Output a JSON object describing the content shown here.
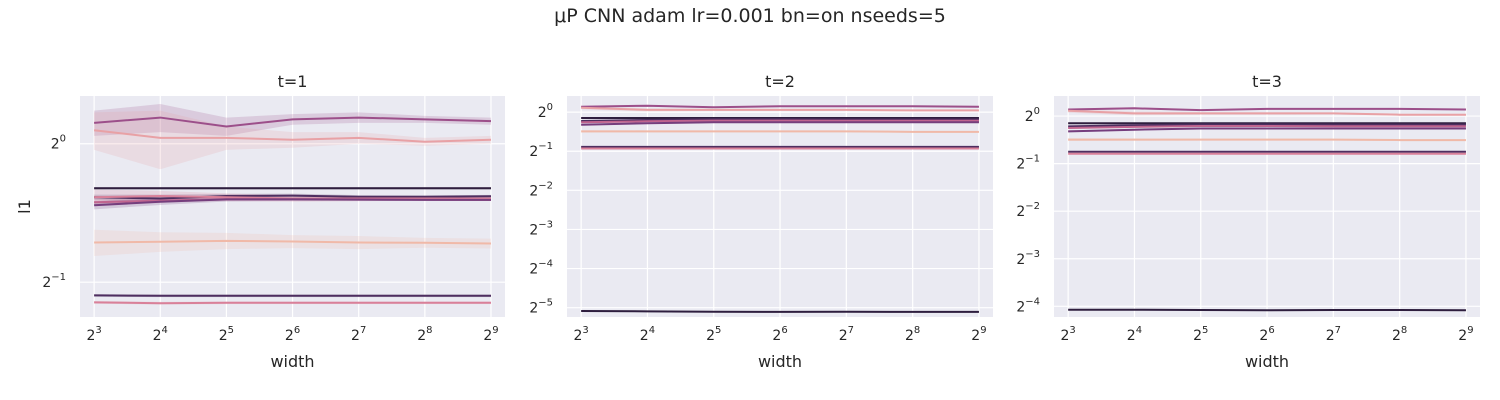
{
  "suptitle": "μP CNN adam lr=0.001 bn=on nseeds=5",
  "style": {
    "axes_bg": "#eaeaf2",
    "grid": "#ffffff",
    "text": "#262626",
    "palette": [
      "#f0b9a8",
      "#e8a1a5",
      "#d98099",
      "#c0658f",
      "#9c4f8a",
      "#753e7d",
      "#4e2e60",
      "#2e1e3e"
    ]
  },
  "chart_data": [
    {
      "type": "line",
      "title": "t=1",
      "xlabel": "width",
      "ylabel": "l1",
      "xscale": "log2",
      "yscale": "log2",
      "x": [
        8,
        16,
        32,
        64,
        128,
        256,
        512
      ],
      "x_ticks": [
        {
          "base": "2",
          "exp": "3"
        },
        {
          "base": "2",
          "exp": "4"
        },
        {
          "base": "2",
          "exp": "5"
        },
        {
          "base": "2",
          "exp": "6"
        },
        {
          "base": "2",
          "exp": "7"
        },
        {
          "base": "2",
          "exp": "8"
        },
        {
          "base": "2",
          "exp": "9"
        }
      ],
      "y_ticks": [
        {
          "value": 1.0,
          "base": "2",
          "exp": "0"
        },
        {
          "value": 0.5,
          "base": "2",
          "exp": "−1"
        }
      ],
      "xlim": [
        6.9,
        593
      ],
      "ylim": [
        0.42,
        1.27
      ],
      "grid": true,
      "series": [
        {
          "color": "#9c4f8a",
          "values": [
            1.11,
            1.14,
            1.09,
            1.13,
            1.14,
            1.13,
            1.12
          ],
          "band": [
            0.07,
            0.08,
            0.05,
            0.03,
            0.03,
            0.02,
            0.02
          ]
        },
        {
          "color": "#e8a1a5",
          "values": [
            1.07,
            1.03,
            1.03,
            1.02,
            1.03,
            1.01,
            1.02
          ],
          "band": [
            0.1,
            0.15,
            0.06,
            0.04,
            0.03,
            0.02,
            0.02
          ]
        },
        {
          "color": "#2e1e3e",
          "values": [
            0.8,
            0.8,
            0.8,
            0.8,
            0.8,
            0.8,
            0.8
          ],
          "band": [
            0.005,
            0.005,
            0.005,
            0.005,
            0.005,
            0.005,
            0.005
          ]
        },
        {
          "color": "#4e2e60",
          "values": [
            0.765,
            0.76,
            0.77,
            0.771,
            0.767,
            0.767,
            0.769
          ],
          "band": [
            0.01,
            0.015,
            0.008,
            0.008,
            0.006,
            0.005,
            0.005
          ]
        },
        {
          "color": "#d98099",
          "values": [
            0.765,
            0.77,
            0.765,
            0.76,
            0.76,
            0.76,
            0.76
          ],
          "band": [
            0.03,
            0.02,
            0.015,
            0.012,
            0.01,
            0.008,
            0.008
          ]
        },
        {
          "color": "#c0658f",
          "values": [
            0.746,
            0.752,
            0.758,
            0.758,
            0.758,
            0.756,
            0.755
          ],
          "band": [
            0.01,
            0.008,
            0.006,
            0.005,
            0.005,
            0.004,
            0.004
          ]
        },
        {
          "color": "#753e7d",
          "values": [
            0.735,
            0.748,
            0.757,
            0.757,
            0.756,
            0.755,
            0.755
          ],
          "band": [
            0.015,
            0.012,
            0.008,
            0.006,
            0.005,
            0.004,
            0.004
          ]
        },
        {
          "color": "#f0b9a8",
          "values": [
            0.61,
            0.612,
            0.615,
            0.613,
            0.61,
            0.609,
            0.607
          ],
          "band": [
            0.04,
            0.03,
            0.025,
            0.02,
            0.02,
            0.015,
            0.015
          ]
        },
        {
          "color": "#4e2e60",
          "values": [
            0.468,
            0.467,
            0.467,
            0.467,
            0.467,
            0.467,
            0.467
          ],
          "band": [
            0.003,
            0.003,
            0.003,
            0.003,
            0.003,
            0.003,
            0.003
          ]
        },
        {
          "color": "#d98099",
          "values": [
            0.452,
            0.45,
            0.451,
            0.451,
            0.451,
            0.451,
            0.451
          ],
          "band": [
            0.003,
            0.003,
            0.003,
            0.003,
            0.003,
            0.003,
            0.003
          ]
        }
      ]
    },
    {
      "type": "line",
      "title": "t=2",
      "xlabel": "width",
      "ylabel": "",
      "xscale": "log2",
      "yscale": "log2",
      "x": [
        8,
        16,
        32,
        64,
        128,
        256,
        512
      ],
      "x_ticks": [
        {
          "base": "2",
          "exp": "3"
        },
        {
          "base": "2",
          "exp": "4"
        },
        {
          "base": "2",
          "exp": "5"
        },
        {
          "base": "2",
          "exp": "6"
        },
        {
          "base": "2",
          "exp": "7"
        },
        {
          "base": "2",
          "exp": "8"
        },
        {
          "base": "2",
          "exp": "9"
        }
      ],
      "y_ticks": [
        {
          "value": 1.0,
          "base": "2",
          "exp": "0"
        },
        {
          "value": 0.5,
          "base": "2",
          "exp": "−1"
        },
        {
          "value": 0.25,
          "base": "2",
          "exp": "−2"
        },
        {
          "value": 0.125,
          "base": "2",
          "exp": "−3"
        },
        {
          "value": 0.0625,
          "base": "2",
          "exp": "−4"
        },
        {
          "value": 0.03125,
          "base": "2",
          "exp": "−5"
        }
      ],
      "xlim": [
        6.9,
        593
      ],
      "ylim": [
        0.0265,
        1.33
      ],
      "grid": true,
      "series": [
        {
          "color": "#9c4f8a",
          "values": [
            1.1,
            1.12,
            1.09,
            1.11,
            1.11,
            1.11,
            1.1
          ],
          "band": [
            0.015,
            0.015,
            0.01,
            0.01,
            0.01,
            0.01,
            0.01
          ]
        },
        {
          "color": "#e8a1a5",
          "values": [
            1.08,
            1.04,
            1.04,
            1.04,
            1.04,
            1.03,
            1.03
          ],
          "band": [
            0.03,
            0.03,
            0.02,
            0.02,
            0.015,
            0.015,
            0.015
          ]
        },
        {
          "color": "#2e1e3e",
          "values": [
            0.9,
            0.9,
            0.9,
            0.9,
            0.9,
            0.9,
            0.9
          ],
          "band": [
            0.005,
            0.005,
            0.005,
            0.005,
            0.005,
            0.005,
            0.005
          ]
        },
        {
          "color": "#4e2e60",
          "values": [
            0.855,
            0.87,
            0.88,
            0.88,
            0.878,
            0.878,
            0.878
          ],
          "band": [
            0.01,
            0.008,
            0.006,
            0.005,
            0.005,
            0.005,
            0.005
          ]
        },
        {
          "color": "#c0658f",
          "values": [
            0.835,
            0.85,
            0.86,
            0.86,
            0.858,
            0.858,
            0.858
          ],
          "band": [
            0.01,
            0.008,
            0.006,
            0.005,
            0.005,
            0.005,
            0.005
          ]
        },
        {
          "color": "#753e7d",
          "values": [
            0.8,
            0.82,
            0.835,
            0.835,
            0.835,
            0.835,
            0.835
          ],
          "band": [
            0.012,
            0.01,
            0.008,
            0.006,
            0.005,
            0.005,
            0.005
          ]
        },
        {
          "color": "#f0b9a8",
          "values": [
            0.71,
            0.71,
            0.71,
            0.71,
            0.71,
            0.705,
            0.705
          ],
          "band": [
            0.015,
            0.012,
            0.01,
            0.01,
            0.01,
            0.01,
            0.01
          ]
        },
        {
          "color": "#4e2e60",
          "values": [
            0.54,
            0.54,
            0.54,
            0.54,
            0.54,
            0.54,
            0.54
          ],
          "band": [
            0.004,
            0.004,
            0.004,
            0.004,
            0.004,
            0.004,
            0.004
          ]
        },
        {
          "color": "#d98099",
          "values": [
            0.525,
            0.525,
            0.525,
            0.525,
            0.525,
            0.525,
            0.525
          ],
          "band": [
            0.004,
            0.004,
            0.004,
            0.004,
            0.004,
            0.004,
            0.004
          ]
        },
        {
          "color": "#2e1e3e",
          "values": [
            0.0295,
            0.0293,
            0.0291,
            0.029,
            0.0291,
            0.029,
            0.029
          ],
          "band": [
            0.0003,
            0.0003,
            0.0003,
            0.0003,
            0.0003,
            0.0003,
            0.0003
          ]
        }
      ]
    },
    {
      "type": "line",
      "title": "t=3",
      "xlabel": "width",
      "ylabel": "",
      "xscale": "log2",
      "yscale": "log2",
      "x": [
        8,
        16,
        32,
        64,
        128,
        256,
        512
      ],
      "x_ticks": [
        {
          "base": "2",
          "exp": "3"
        },
        {
          "base": "2",
          "exp": "4"
        },
        {
          "base": "2",
          "exp": "5"
        },
        {
          "base": "2",
          "exp": "6"
        },
        {
          "base": "2",
          "exp": "7"
        },
        {
          "base": "2",
          "exp": "8"
        },
        {
          "base": "2",
          "exp": "9"
        }
      ],
      "y_ticks": [
        {
          "value": 1.0,
          "base": "2",
          "exp": "0"
        },
        {
          "value": 0.5,
          "base": "2",
          "exp": "−1"
        },
        {
          "value": 0.25,
          "base": "2",
          "exp": "−2"
        },
        {
          "value": 0.125,
          "base": "2",
          "exp": "−3"
        },
        {
          "value": 0.0625,
          "base": "2",
          "exp": "−4"
        }
      ],
      "xlim": [
        6.9,
        593
      ],
      "ylim": [
        0.0535,
        1.34
      ],
      "grid": true,
      "series": [
        {
          "color": "#9c4f8a",
          "values": [
            1.1,
            1.12,
            1.09,
            1.11,
            1.11,
            1.11,
            1.1
          ],
          "band": [
            0.015,
            0.015,
            0.01,
            0.01,
            0.01,
            0.01,
            0.01
          ]
        },
        {
          "color": "#e8a1a5",
          "values": [
            1.08,
            1.04,
            1.04,
            1.04,
            1.04,
            1.02,
            1.02
          ],
          "band": [
            0.03,
            0.03,
            0.02,
            0.02,
            0.015,
            0.015,
            0.015
          ]
        },
        {
          "color": "#2e1e3e",
          "values": [
            0.9,
            0.9,
            0.9,
            0.9,
            0.9,
            0.9,
            0.9
          ],
          "band": [
            0.005,
            0.005,
            0.005,
            0.005,
            0.005,
            0.005,
            0.005
          ]
        },
        {
          "color": "#4e2e60",
          "values": [
            0.86,
            0.875,
            0.885,
            0.885,
            0.883,
            0.883,
            0.883
          ],
          "band": [
            0.01,
            0.008,
            0.006,
            0.005,
            0.005,
            0.005,
            0.005
          ]
        },
        {
          "color": "#c0658f",
          "values": [
            0.84,
            0.855,
            0.865,
            0.865,
            0.863,
            0.863,
            0.863
          ],
          "band": [
            0.01,
            0.008,
            0.006,
            0.005,
            0.005,
            0.005,
            0.005
          ]
        },
        {
          "color": "#753e7d",
          "values": [
            0.8,
            0.82,
            0.835,
            0.835,
            0.835,
            0.835,
            0.835
          ],
          "band": [
            0.012,
            0.01,
            0.008,
            0.006,
            0.005,
            0.005,
            0.005
          ]
        },
        {
          "color": "#f0b9a8",
          "values": [
            0.71,
            0.71,
            0.71,
            0.71,
            0.71,
            0.705,
            0.705
          ],
          "band": [
            0.015,
            0.012,
            0.01,
            0.01,
            0.01,
            0.01,
            0.01
          ]
        },
        {
          "color": "#4e2e60",
          "values": [
            0.595,
            0.595,
            0.595,
            0.595,
            0.595,
            0.595,
            0.595
          ],
          "band": [
            0.004,
            0.004,
            0.004,
            0.004,
            0.004,
            0.004,
            0.004
          ]
        },
        {
          "color": "#d98099",
          "values": [
            0.578,
            0.578,
            0.578,
            0.578,
            0.578,
            0.578,
            0.578
          ],
          "band": [
            0.004,
            0.004,
            0.004,
            0.004,
            0.004,
            0.004,
            0.004
          ]
        },
        {
          "color": "#2e1e3e",
          "values": [
            0.0595,
            0.0595,
            0.0593,
            0.059,
            0.0592,
            0.0592,
            0.059
          ],
          "band": [
            0.0004,
            0.0004,
            0.0004,
            0.0004,
            0.0004,
            0.0004,
            0.0004
          ]
        }
      ]
    }
  ]
}
